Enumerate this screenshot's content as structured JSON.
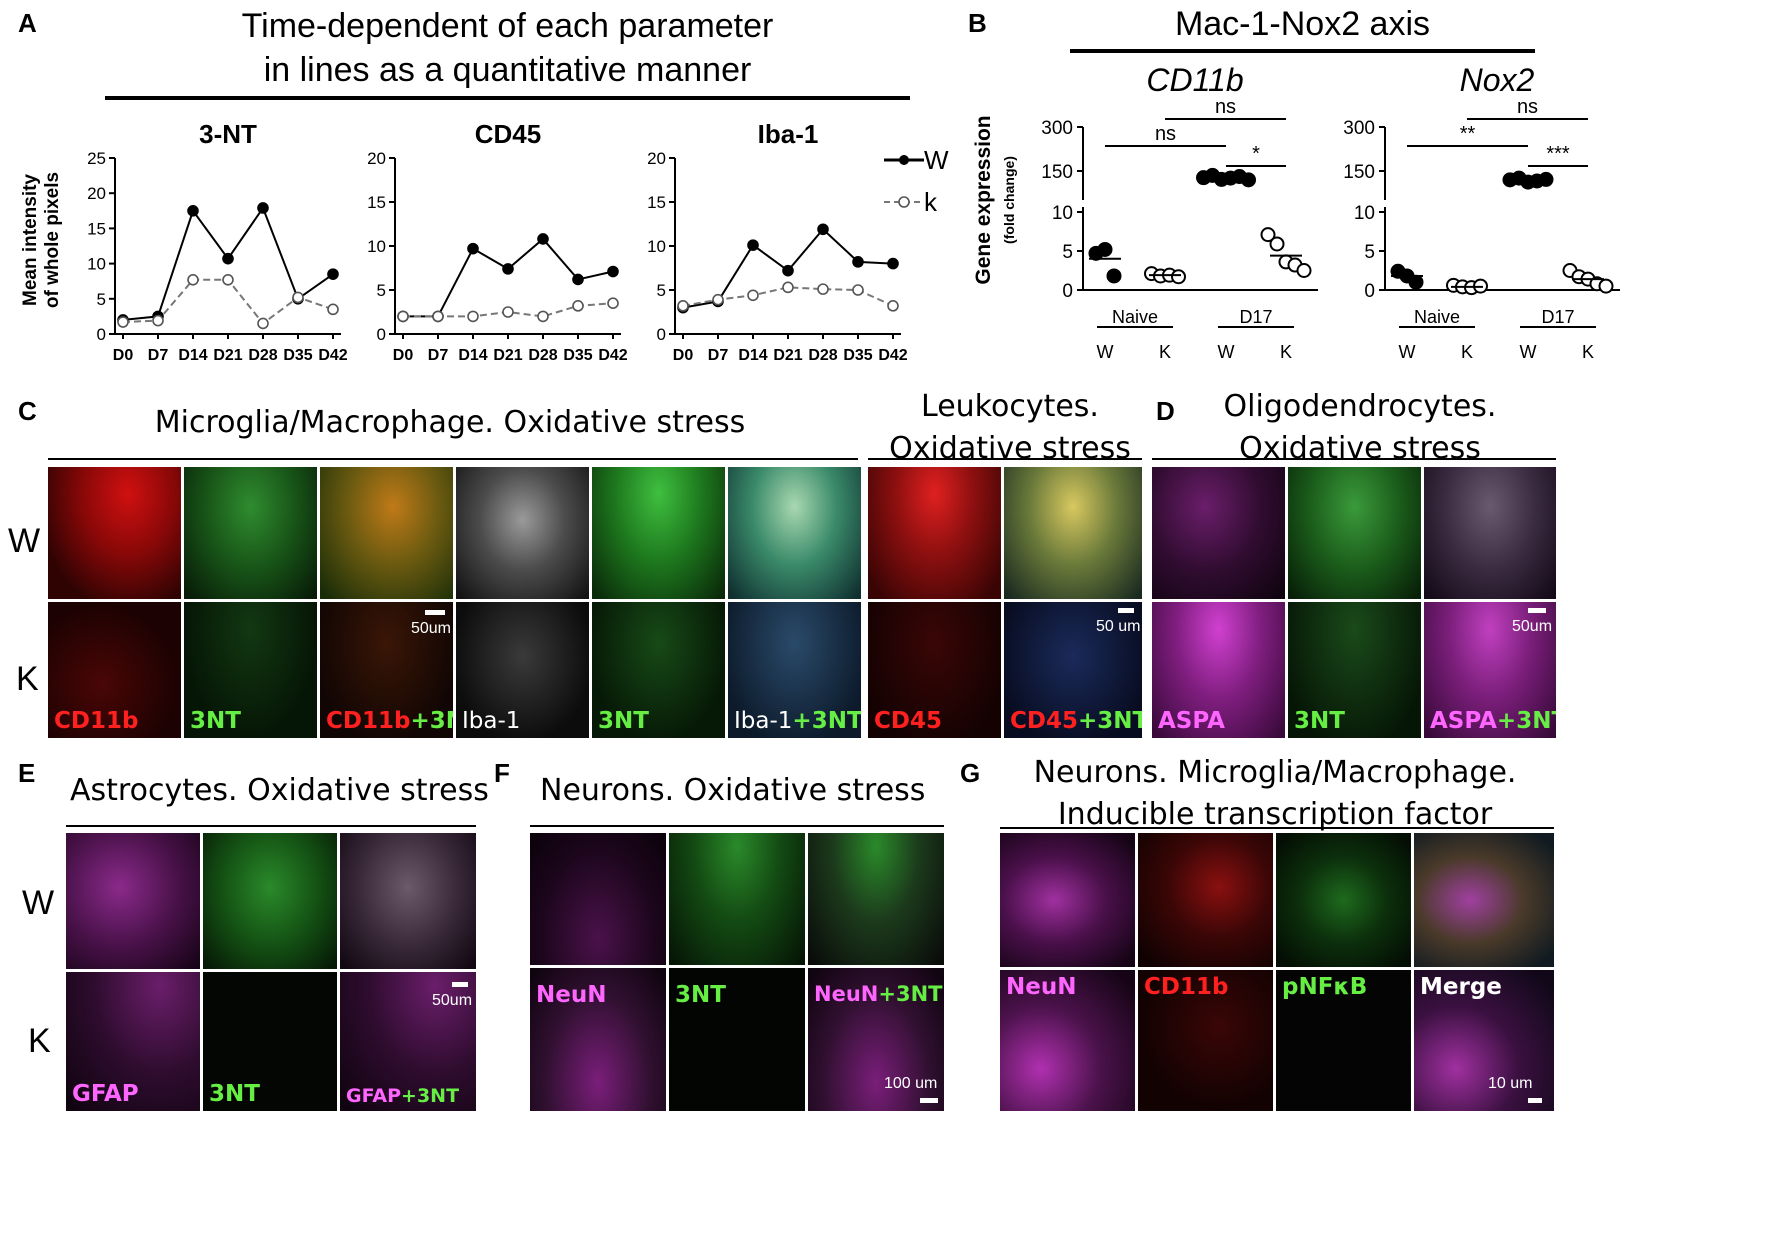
{
  "panel_labels": {
    "a": "A",
    "b": "B",
    "c": "C",
    "d": "D",
    "e": "E",
    "f": "F",
    "g": "G"
  },
  "panelA": {
    "title_line1": "Time-dependent of each parameter",
    "title_line2": "in lines as a quantitative manner",
    "ylabel_line1": "Mean intensity",
    "ylabel_line2": "of whole pixels",
    "legend": {
      "w": "W",
      "k": "k"
    }
  },
  "panelB": {
    "title": "Mac-1-Nox2 axis",
    "ylabel": "Gene expression",
    "ylabel_sub": "(fold change)"
  },
  "chart_data": [
    {
      "type": "line",
      "title": "3-NT",
      "xlabel": "",
      "ylabel": "Mean intensity of whole pixels",
      "categories": [
        "D0",
        "D7",
        "D14",
        "D21",
        "D28",
        "D35",
        "D42"
      ],
      "ylim": [
        0,
        25
      ],
      "yticks": [
        0,
        5,
        10,
        15,
        20,
        25
      ],
      "series": [
        {
          "name": "W",
          "color": "#000000",
          "values": [
            2,
            2.5,
            17.5,
            10.7,
            17.9,
            5,
            8.5
          ]
        },
        {
          "name": "k",
          "color": "#777777",
          "values": [
            1.7,
            1.9,
            7.7,
            7.7,
            1.5,
            5.2,
            3.5
          ]
        }
      ]
    },
    {
      "type": "line",
      "title": "CD45",
      "xlabel": "",
      "ylabel": "",
      "categories": [
        "D0",
        "D7",
        "D14",
        "D21",
        "D28",
        "D35",
        "D42"
      ],
      "ylim": [
        0,
        20
      ],
      "yticks": [
        0,
        5,
        10,
        15,
        20
      ],
      "series": [
        {
          "name": "W",
          "color": "#000000",
          "values": [
            2,
            2,
            9.7,
            7.4,
            10.8,
            6.2,
            7.1
          ]
        },
        {
          "name": "k",
          "color": "#777777",
          "values": [
            2,
            2,
            2,
            2.5,
            2,
            3.2,
            3.5
          ]
        }
      ]
    },
    {
      "type": "line",
      "title": "Iba-1",
      "xlabel": "",
      "ylabel": "",
      "categories": [
        "D0",
        "D7",
        "D14",
        "D21",
        "D28",
        "D35",
        "D42"
      ],
      "ylim": [
        0,
        20
      ],
      "yticks": [
        0,
        5,
        10,
        15,
        20
      ],
      "series": [
        {
          "name": "W",
          "color": "#000000",
          "values": [
            3,
            3.7,
            10.1,
            7.2,
            11.9,
            8.2,
            8
          ]
        },
        {
          "name": "k",
          "color": "#777777",
          "values": [
            3.2,
            3.9,
            4.4,
            5.3,
            5.1,
            5,
            3.2
          ]
        }
      ]
    },
    {
      "type": "scatter",
      "title": "CD11b",
      "ylabel": "Gene expression (fold change)",
      "axis_break": true,
      "yticks": [
        "0",
        "5",
        "10",
        "150",
        "300"
      ],
      "groups": [
        "Naive",
        "D17"
      ],
      "categories": [
        "W",
        "K",
        "W",
        "K"
      ],
      "points": [
        [
          4.7,
          5.2,
          1.8
        ],
        [
          2.1,
          1.8,
          1.9,
          1.7
        ],
        [
          120,
          130,
          112,
          118,
          125,
          110
        ],
        [
          7.1,
          5.9,
          3.6,
          3.2,
          2.5
        ]
      ],
      "means": [
        4,
        1.9,
        119,
        4.4
      ],
      "sig": [
        {
          "pair": [
            "Naive W",
            "D17 W"
          ],
          "label": "ns"
        },
        {
          "pair": [
            "Naive K",
            "D17 K"
          ],
          "label": "ns"
        },
        {
          "pair": [
            "D17 W",
            "D17 K"
          ],
          "label": "*"
        }
      ]
    },
    {
      "type": "scatter",
      "title": "Nox2",
      "ylabel": "",
      "axis_break": true,
      "yticks": [
        "0",
        "5",
        "10",
        "150",
        "300"
      ],
      "groups": [
        "Naive",
        "D17"
      ],
      "categories": [
        "W",
        "K",
        "W",
        "K"
      ],
      "points": [
        [
          2.4,
          1.8,
          1
        ],
        [
          0.6,
          0.4,
          0.3,
          0.5
        ],
        [
          110,
          118,
          100,
          105,
          112
        ],
        [
          2.5,
          1.7,
          1.4,
          0.8,
          0.5
        ]
      ],
      "means": [
        1.8,
        0.4,
        110,
        1.4
      ],
      "sig": [
        {
          "pair": [
            "Naive W",
            "D17 W"
          ],
          "label": "**"
        },
        {
          "pair": [
            "Naive K",
            "D17 K"
          ],
          "label": "ns"
        },
        {
          "pair": [
            "D17 W",
            "D17 K"
          ],
          "label": "***"
        }
      ]
    }
  ],
  "panelC": {
    "title": "Microglia/Macrophage. Oxidative stress",
    "title_leuko_line1": "Leukocytes.",
    "title_leuko_line2": "Oxidative stress",
    "row_w": "W",
    "row_k": "K",
    "labels": {
      "cd11b": "CD11b",
      "nt": "3NT",
      "plus": "+",
      "iba1": "Iba-1",
      "cd45": "CD45"
    },
    "scale1": "50um",
    "scale2": "50 um"
  },
  "panelD": {
    "title_line1": "Oligodendrocytes.",
    "title_line2": "Oxidative stress",
    "labels": {
      "aspa": "ASPA",
      "nt": "3NT"
    },
    "scale": "50um"
  },
  "panelE": {
    "title": "Astrocytes. Oxidative stress",
    "row_w": "W",
    "row_k": "K",
    "labels": {
      "gfap": "GFAP",
      "nt": "3NT"
    },
    "scale": "50um"
  },
  "panelF": {
    "title": "Neurons. Oxidative stress",
    "labels": {
      "neun": "NeuN",
      "nt": "3NT"
    },
    "scale": "100 um"
  },
  "panelG": {
    "title_line1": "Neurons. Microglia/Macrophage.",
    "title_line2": "Inducible transcription factor",
    "labels": {
      "neun": "NeuN",
      "cd11b": "CD11b",
      "pnfkb": "pNFκB",
      "merge": "Merge"
    },
    "scale": "10 um"
  },
  "colors": {
    "red": "#ff2020",
    "green": "#33cc33",
    "magenta": "#e040e0",
    "white": "#ffffff"
  }
}
